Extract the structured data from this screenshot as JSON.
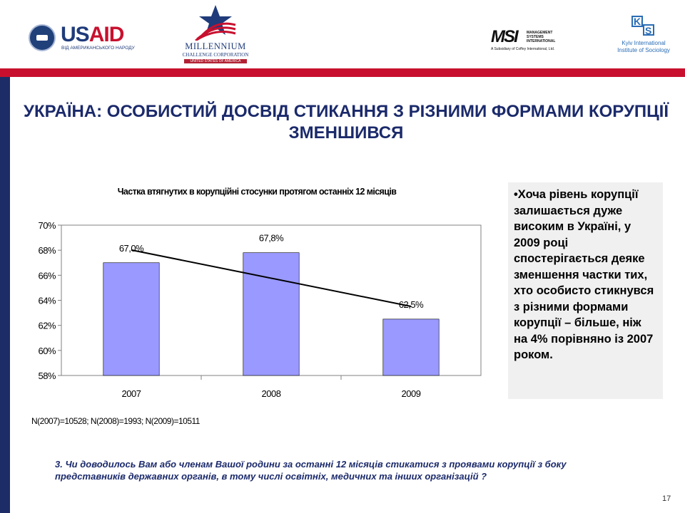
{
  "logos": {
    "usaid": {
      "word_a": "US",
      "word_b": "AID",
      "sub": "ВІД АМЕРИКАНСЬКОГО НАРОДУ"
    },
    "mcc": {
      "line1": "MILLENNIUM",
      "line2": "CHALLENGE CORPORATION",
      "line3": "UNITED STATES OF AMERICA"
    },
    "msi": {
      "big": "MSI",
      "side": [
        "MANAGEMENT",
        "SYSTEMS",
        "INTERNATIONAL"
      ],
      "foot": "A Subsidiary of Coffey International, Ltd."
    },
    "kiis": {
      "letters": "KIIS",
      "line1": "Kyiv International",
      "line2": "Institute of Sociology"
    }
  },
  "colors": {
    "brand_navy": "#1b2a6b",
    "band_red": "#c8102e",
    "bar_fill": "#9999ff",
    "box_bg": "#f0f0f0"
  },
  "slide_title": "УКРАЇНА: ОСОБИСТИЙ ДОСВІД СТИКАННЯ З РІЗНИМИ ФОРМАМИ КОРУПЦІЇ ЗМЕНШИВСЯ",
  "chart_data": {
    "type": "bar",
    "title": "Частка втягнутих в корупційні стосунки протягом останніх 12 місяців",
    "categories": [
      "2007",
      "2008",
      "2009"
    ],
    "values": [
      67.0,
      67.8,
      62.5
    ],
    "data_labels": [
      "67,0%",
      "67,8%",
      "62,5%"
    ],
    "ylim": [
      58,
      70
    ],
    "yticks": [
      58,
      60,
      62,
      64,
      66,
      68,
      70
    ],
    "ytick_labels": [
      "58%",
      "60%",
      "62%",
      "64%",
      "66%",
      "68%",
      "70%"
    ],
    "trendline": true,
    "grid": false,
    "legend": "none"
  },
  "sample_note": "N(2007)=10528; N(2008)=1993; N(2009)=10511",
  "callout": "•Хоча рівень корупції залишається дуже високим в Україні, у 2009 році спостерігається деяке зменшення частки тих, хто особисто стикнувся з різними формами корупції – більше, ніж на 4% порівняно із 2007 роком.",
  "question": "3. Чи доводилось Вам або членам Вашої родини за останні 12 місяців стикатися з проявами корупції з боку представників державних органів, в тому числі освітніх, медичних та інших організацій ?",
  "page_number": "17"
}
